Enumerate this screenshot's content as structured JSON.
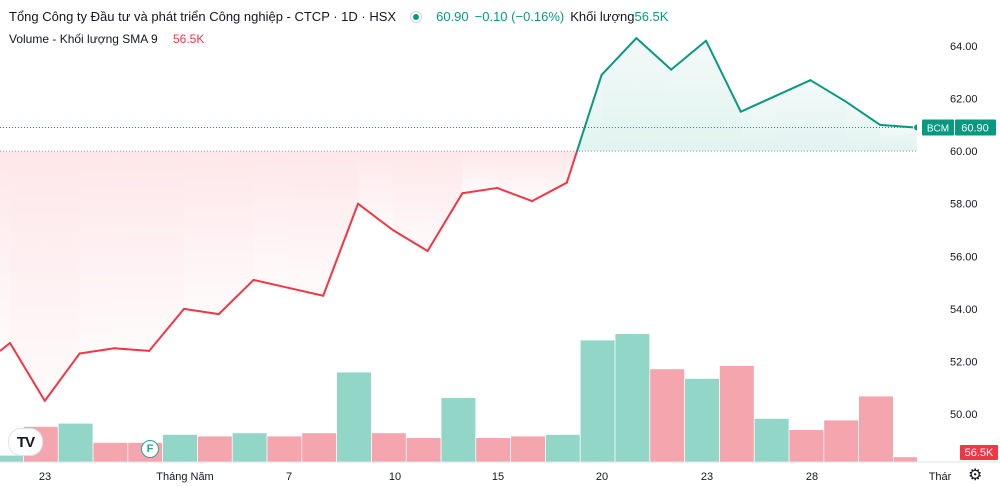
{
  "header": {
    "symbol_title": "Tổng Công ty Đầu tư và phát triển Công nghiệp - CTCP · 1D · HSX",
    "last_price": "60.90",
    "change": "−0.10 (−0.16%)",
    "volume_label": "Khối lượng",
    "volume_value": "56.5K"
  },
  "volume_legend": {
    "label": "Volume - Khối lượng SMA 9",
    "value": "56.5K"
  },
  "price_badge": {
    "ticker": "BCM",
    "value": "60.90"
  },
  "volume_badge": "56.5K",
  "event_marker": "F",
  "logo_text": "TV",
  "icons": {
    "settings": "gear-icon",
    "logo": "tradingview-logo-icon",
    "status": "market-status-icon"
  },
  "colors": {
    "up": "#089981",
    "down": "#f23645",
    "up_volume": "#92d6c8",
    "down_volume": "#f5a5ad"
  },
  "chart_data": {
    "type": "line",
    "baseline": 60.0,
    "ylim": [
      49.0,
      65.0
    ],
    "yticks": [
      "64.00",
      "62.00",
      "60.00",
      "58.00",
      "56.00",
      "54.00",
      "52.00",
      "50.00"
    ],
    "xtick_labels": [
      "23",
      "Tháng Năm",
      "7",
      "10",
      "15",
      "20",
      "23",
      "28",
      "Thár"
    ],
    "price": [
      52.7,
      50.5,
      52.3,
      52.5,
      52.4,
      54.0,
      53.8,
      55.1,
      54.8,
      54.5,
      58.0,
      57.0,
      56.2,
      58.4,
      58.6,
      58.1,
      58.8,
      62.9,
      64.3,
      63.1,
      64.2,
      61.5,
      62.1,
      62.7,
      61.9,
      61.0,
      60.9
    ],
    "volume_series": {
      "name": "Volume",
      "values": [
        2.0,
        11.0,
        12.0,
        6.0,
        6.0,
        8.5,
        8.0,
        9.0,
        8.0,
        9.0,
        28.0,
        9.0,
        7.5,
        20.0,
        7.5,
        8.0,
        8.5,
        38.0,
        40.0,
        29.0,
        26.0,
        30.0,
        13.5,
        10.0,
        13.0,
        20.5,
        1.5
      ],
      "direction": [
        "up",
        "down",
        "up",
        "down",
        "down",
        "up",
        "down",
        "up",
        "down",
        "down",
        "up",
        "down",
        "down",
        "up",
        "down",
        "down",
        "up",
        "up",
        "up",
        "down",
        "up",
        "down",
        "up",
        "down",
        "down",
        "down",
        "down"
      ],
      "ylim": [
        0,
        60
      ]
    }
  }
}
